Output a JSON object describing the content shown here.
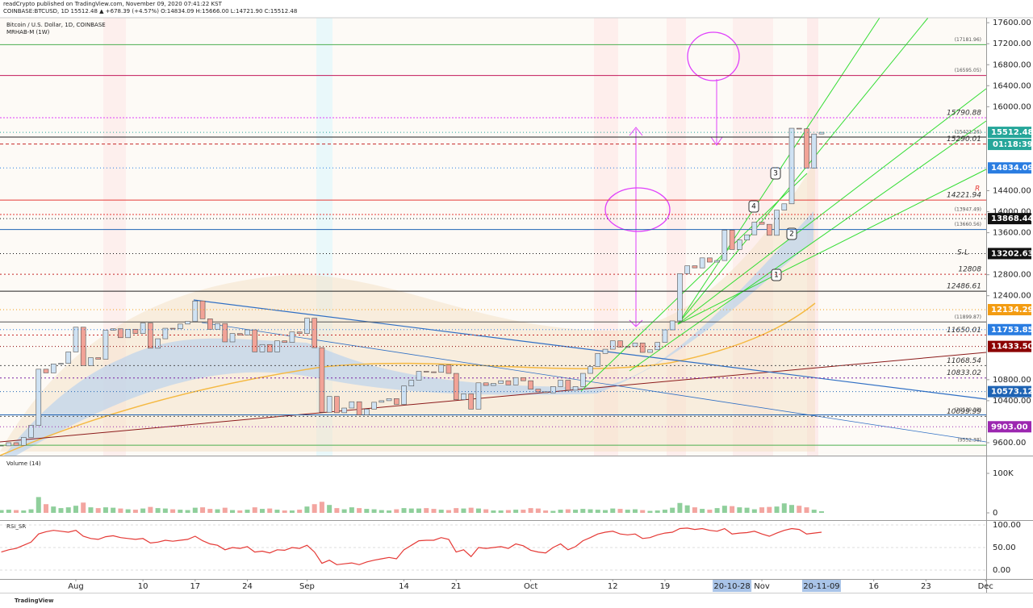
{
  "chart_data": {
    "type": "candlestick",
    "publisher": "readCrypto published on TradingView.com, November 09, 2020 07:41:22 KST",
    "symbol_line": "COINBASE:BTCUSD, 1D 15512.48 ▲ +678.39 (+4.57%) O:14834.09 H:15666.00 L:14721.90 C:15512.48",
    "title": "Bitcoin / U.S. Dollar, 1D, COINBASE",
    "indicator": "MRHAB-M (1W)",
    "footer": "TradingView",
    "countdown": "01:18:39",
    "annotations": [
      "1",
      "2",
      "3",
      "4",
      "S-L",
      "R"
    ],
    "colors": {
      "up": "#cfe2f3",
      "down": "#f2a397",
      "wick": "#555555"
    },
    "x": [
      -10,
      -9,
      -8,
      -7,
      -6,
      -5,
      -4,
      -3,
      -2,
      -1,
      0,
      1,
      2,
      3,
      4,
      5,
      6,
      7,
      8,
      9,
      10,
      11,
      12,
      13,
      14,
      15,
      16,
      17,
      18,
      19,
      20,
      21,
      22,
      23,
      24,
      25,
      26,
      27,
      28,
      29,
      30,
      31,
      32,
      33,
      34,
      35,
      36,
      37,
      38,
      39,
      40,
      41,
      42,
      43,
      44,
      45,
      46,
      47,
      48,
      49,
      50,
      51,
      52,
      53,
      54,
      55,
      56,
      57,
      58,
      59,
      60,
      61,
      62,
      63,
      64,
      65,
      66,
      67,
      68,
      69,
      70,
      71,
      72,
      73,
      74,
      75,
      76,
      77,
      78,
      79,
      80,
      81,
      82,
      83,
      84,
      85,
      86,
      87,
      88,
      89,
      90,
      91,
      92,
      93,
      94,
      95,
      96,
      97,
      98,
      99,
      100
    ],
    "values": [
      9540,
      9600,
      9550,
      9700,
      9930,
      11000,
      10930,
      11100,
      11110,
      11330,
      11800,
      11070,
      11220,
      11190,
      11740,
      11770,
      11600,
      11760,
      11680,
      11880,
      11400,
      11580,
      11780,
      11770,
      11860,
      11910,
      12300,
      11960,
      11760,
      11870,
      11520,
      11680,
      11650,
      11750,
      11330,
      11470,
      11330,
      11540,
      11510,
      11710,
      11680,
      11970,
      11410,
      10180,
      10480,
      10170,
      10260,
      10380,
      10130,
      10240,
      10370,
      10400,
      10440,
      10330,
      10680,
      10790,
      10960,
      10950,
      10940,
      11080,
      10920,
      10420,
      10530,
      10240,
      10740,
      10690,
      10730,
      10780,
      10700,
      10840,
      10780,
      10620,
      10570,
      10550,
      10670,
      10790,
      10600,
      10670,
      10920,
      11050,
      11300,
      11380,
      11540,
      11420,
      11430,
      11500,
      11320,
      11370,
      11510,
      11750,
      11920,
      12820,
      12970,
      12930,
      13120,
      13040,
      13070,
      13650,
      13280,
      13460,
      13560,
      13800,
      13760,
      13550,
      14030,
      14150,
      15590,
      15580,
      14830,
      15480,
      15512.48
    ],
    "xlim": [
      -10.17,
      122.08
    ],
    "xticks": [
      {
        "value": 0,
        "label": "Aug"
      },
      {
        "value": 9,
        "label": "10"
      },
      {
        "value": 16,
        "label": "17"
      },
      {
        "value": 23,
        "label": "24"
      },
      {
        "value": 31,
        "label": "Sep"
      },
      {
        "value": 44,
        "label": "14"
      },
      {
        "value": 51,
        "label": "21"
      },
      {
        "value": 61,
        "label": "Oct"
      },
      {
        "value": 72,
        "label": "12"
      },
      {
        "value": 79,
        "label": "19"
      },
      {
        "value": 88,
        "label": "20-10-28",
        "highlight": true
      },
      {
        "value": 92,
        "label": "Nov"
      },
      {
        "value": 100,
        "label": "20-11-09",
        "highlight": true
      },
      {
        "value": 107,
        "label": "16"
      },
      {
        "value": 114,
        "label": "23"
      },
      {
        "value": 122,
        "label": "Dec"
      }
    ],
    "ylim": [
      9354,
      17695
    ],
    "yticks": [
      {
        "value": 17600,
        "label": "17600.00"
      },
      {
        "value": 17200,
        "label": "17200.00"
      },
      {
        "value": 16800,
        "label": "16800.00"
      },
      {
        "value": 16400,
        "label": "16400.00"
      },
      {
        "value": 16000,
        "label": "16000.00"
      },
      {
        "value": 14400,
        "label": "14400.00"
      },
      {
        "value": 14000,
        "label": "14000.00"
      },
      {
        "value": 13600,
        "label": "13600.00"
      },
      {
        "value": 12800,
        "label": "12800.00"
      },
      {
        "value": 12400,
        "label": "12400.00"
      },
      {
        "value": 10800,
        "label": "10800.00"
      },
      {
        "value": 10400,
        "label": "10400.00"
      },
      {
        "value": 9600,
        "label": "9600.00"
      }
    ],
    "levels": [
      {
        "value": 17181.96,
        "label": "(17181.96)",
        "color": "#4caf50",
        "dash": "none",
        "small": true
      },
      {
        "value": 16595.05,
        "label": "(16595.05)",
        "color": "#c2185b",
        "dash": "none",
        "small": true
      },
      {
        "value": 15790.88,
        "label": "15790.88",
        "color": "#e040fb",
        "dash": "2,2"
      },
      {
        "value": 15421.26,
        "label": "(15421.26)",
        "color": "#222222",
        "dash": "none",
        "small": true
      },
      {
        "value": 15290.01,
        "label": "15290.01",
        "color": "#c62828",
        "dash": "4,3"
      },
      {
        "value": 14221.94,
        "label": "14221.94",
        "color": "#e53935",
        "dash": "none"
      },
      {
        "value": 13947.49,
        "label": "(13947.49)",
        "color": "#e53935",
        "dash": "2,2",
        "small": true
      },
      {
        "value": 13660.56,
        "label": "(13660.56)",
        "color": "#1e63b4",
        "dash": "none",
        "small": true
      },
      {
        "value": 12808,
        "label": "12808",
        "color": "#c62828",
        "dash": "2,3"
      },
      {
        "value": 12486.61,
        "label": "12486.61",
        "color": "#222222",
        "dash": "none"
      },
      {
        "value": 11899.87,
        "label": "(11899.87)",
        "color": "#555555",
        "dash": "none",
        "small": true
      },
      {
        "value": 11650.01,
        "label": "11650.01",
        "color": "#c62828",
        "dash": "2,3"
      },
      {
        "value": 11068.54,
        "label": "11068.54",
        "color": "#555555",
        "dash": "2,3"
      },
      {
        "value": 10833.02,
        "label": "10833.02",
        "color": "#7b1fa2",
        "dash": "2,3"
      },
      {
        "value": 10129.38,
        "label": "(10129.38)",
        "color": "#1e63b4",
        "dash": "none",
        "small": true
      },
      {
        "value": 10099.99,
        "label": "10099.99",
        "color": "#555555",
        "dash": "2,3"
      },
      {
        "value": 9552.38,
        "label": "(9552.38)",
        "color": "#4caf50",
        "dash": "none",
        "small": true
      }
    ],
    "price_tags": [
      {
        "value": 15512.48,
        "label": "15512.48",
        "color": "#26a69a"
      },
      {
        "value": 14834.09,
        "label": "14834.09",
        "color": "#2a7de1"
      },
      {
        "value": 13868.44,
        "label": "13868.44",
        "color": "#111111"
      },
      {
        "value": 13202.63,
        "label": "13202.63",
        "color": "#111111"
      },
      {
        "value": 12134.29,
        "label": "12134.29",
        "color": "#f39c12"
      },
      {
        "value": 11753.85,
        "label": "11753.85",
        "color": "#2a7de1"
      },
      {
        "value": 11433.5,
        "label": "11433.50",
        "color": "#8b0000"
      },
      {
        "value": 10573.12,
        "label": "10573.12",
        "color": "#1e63b4"
      },
      {
        "value": 9903.0,
        "label": "9903.00",
        "color": "#9c27b0"
      }
    ],
    "volume": {
      "title": "Volume (14)",
      "ylim": [
        -18400,
        143000
      ],
      "yticks": [
        0,
        {
          "value": 100000,
          "label": "100K"
        }
      ],
      "colors": {
        "up": "#8fcf9b",
        "down": "#f3a5a0"
      },
      "values": [
        7000,
        8000,
        7000,
        6000,
        9000,
        40000,
        22000,
        16000,
        12000,
        14000,
        18000,
        26000,
        14000,
        12000,
        14000,
        13000,
        11000,
        9000,
        8000,
        11000,
        15000,
        12000,
        11000,
        9000,
        8000,
        7000,
        13000,
        14000,
        10000,
        9000,
        13000,
        7000,
        6000,
        8000,
        14000,
        10000,
        11000,
        8000,
        6000,
        6000,
        8000,
        16000,
        22000,
        28000,
        20000,
        12000,
        9000,
        14000,
        12000,
        10000,
        9000,
        7000,
        6000,
        9000,
        12000,
        11000,
        11000,
        12000,
        10000,
        8000,
        7000,
        12000,
        11000,
        13000,
        11000,
        9000,
        6000,
        6000,
        7000,
        8000,
        8000,
        12000,
        11000,
        6000,
        5000,
        8000,
        9000,
        8000,
        10000,
        9000,
        8000,
        7000,
        11000,
        10000,
        8000,
        9000,
        7000,
        5000,
        6000,
        8000,
        13000,
        25000,
        19000,
        14000,
        10000,
        8000,
        12000,
        18000,
        17000,
        14000,
        13000,
        9000,
        14000,
        15000,
        16000,
        24000,
        20000,
        18000,
        14000,
        8000,
        4000
      ]
    },
    "rsi": {
      "title": "RSI_SR",
      "color": "#e53935",
      "ylim": [
        -19.6,
        108.9
      ],
      "yticks": [
        {
          "value": 100,
          "label": "100.00"
        },
        {
          "value": 50,
          "label": "50.00"
        },
        {
          "value": 0,
          "label": "0.00"
        }
      ],
      "values": [
        40,
        45,
        48,
        55,
        62,
        80,
        85,
        88,
        86,
        84,
        88,
        75,
        70,
        68,
        74,
        76,
        72,
        70,
        68,
        70,
        60,
        62,
        66,
        64,
        66,
        68,
        75,
        65,
        58,
        55,
        45,
        50,
        48,
        52,
        40,
        42,
        38,
        45,
        44,
        50,
        48,
        55,
        40,
        15,
        22,
        12,
        14,
        16,
        12,
        18,
        22,
        25,
        28,
        25,
        45,
        55,
        65,
        66,
        66,
        72,
        68,
        40,
        45,
        30,
        50,
        48,
        50,
        52,
        48,
        58,
        54,
        44,
        40,
        38,
        50,
        58,
        45,
        52,
        65,
        72,
        80,
        84,
        86,
        80,
        78,
        80,
        70,
        72,
        78,
        82,
        84,
        92,
        93,
        90,
        92,
        88,
        86,
        92,
        80,
        82,
        83,
        86,
        80,
        75,
        82,
        88,
        92,
        90,
        80,
        82,
        84
      ]
    }
  }
}
